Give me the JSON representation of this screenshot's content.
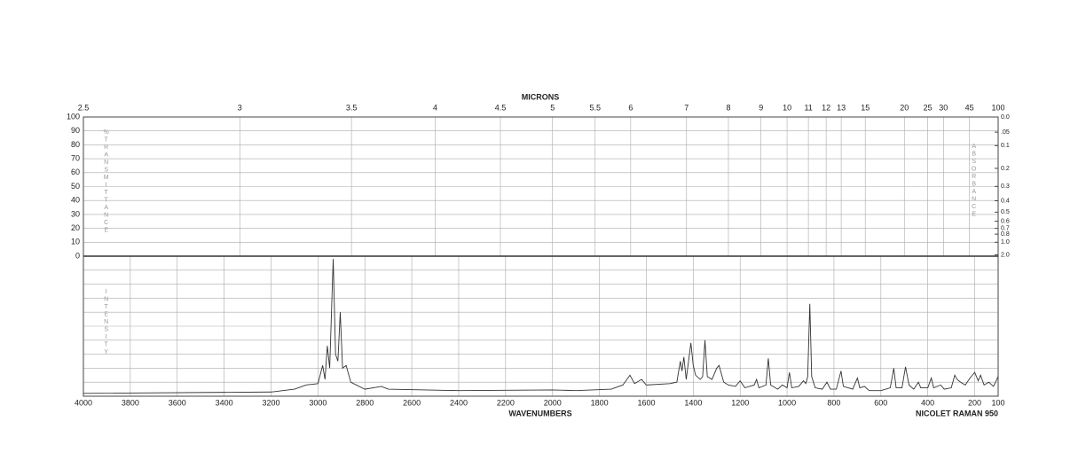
{
  "chart_data": [
    {
      "type": "grid",
      "title": "MICRONS",
      "x2ticks": [
        2.5,
        3,
        3.5,
        4,
        4.5,
        5,
        5.5,
        6,
        7,
        8,
        9,
        10,
        11,
        12,
        13,
        15,
        20,
        25,
        30,
        45,
        100
      ],
      "x2scale": "reciprocal",
      "ylabel": "%TRANSMITTANCE",
      "ylim": [
        0,
        100
      ],
      "yticks": [
        0,
        10,
        20,
        30,
        40,
        50,
        60,
        70,
        80,
        90,
        100
      ],
      "y2label": "ABSORBANCE",
      "y2lim": [
        0,
        2
      ],
      "y2scale": "absorbance",
      "y2ticks": [
        {
          "value": 0,
          "label": "0.0"
        },
        {
          "value": 0.05,
          "label": ".05"
        },
        {
          "value": 0.1,
          "label": "0.1"
        },
        {
          "value": 0.2,
          "label": "0.2"
        },
        {
          "value": 0.3,
          "label": "0.3"
        },
        {
          "value": 0.4,
          "label": "0.4"
        },
        {
          "value": 0.5,
          "label": "0.5"
        },
        {
          "value": 0.6,
          "label": "0.6"
        },
        {
          "value": 0.7,
          "label": "0.7"
        },
        {
          "value": 0.8,
          "label": "0.8"
        },
        {
          "value": 1,
          "label": "1.0"
        },
        {
          "value": 2,
          "label": "2.0"
        }
      ],
      "grid": true
    },
    {
      "type": "line",
      "ylabel": "INTENSITY",
      "xlabel": "WAVENUMBERS",
      "note": "NICOLET RAMAN 950",
      "xlim": [
        4000,
        100
      ],
      "xticks": [
        4000,
        3800,
        3600,
        3400,
        3200,
        3000,
        2800,
        2600,
        2400,
        2200,
        2000,
        1800,
        1600,
        1400,
        1200,
        1000,
        800,
        600,
        400,
        200,
        100
      ],
      "ylim": [
        0,
        100
      ],
      "color": "#333333",
      "grid": true,
      "x": [
        4000,
        3200,
        3100,
        3050,
        3000,
        2980,
        2970,
        2960,
        2950,
        2935,
        2925,
        2915,
        2905,
        2895,
        2880,
        2860,
        2800,
        2730,
        2700,
        2400,
        2000,
        1900,
        1750,
        1700,
        1670,
        1650,
        1620,
        1600,
        1500,
        1470,
        1455,
        1448,
        1440,
        1430,
        1410,
        1400,
        1390,
        1370,
        1360,
        1350,
        1340,
        1320,
        1300,
        1290,
        1270,
        1250,
        1220,
        1200,
        1180,
        1140,
        1130,
        1120,
        1090,
        1080,
        1070,
        1040,
        1020,
        1000,
        990,
        980,
        950,
        930,
        920,
        912,
        903,
        895,
        880,
        850,
        830,
        815,
        790,
        770,
        760,
        720,
        700,
        690,
        670,
        650,
        600,
        560,
        545,
        535,
        510,
        495,
        480,
        460,
        440,
        430,
        400,
        385,
        375,
        345,
        330,
        300,
        285,
        275,
        260,
        240,
        220,
        200,
        185,
        175,
        160,
        140,
        120,
        100
      ],
      "values": [
        2,
        3,
        5,
        8,
        9,
        22,
        12,
        36,
        20,
        98,
        30,
        25,
        60,
        20,
        22,
        10,
        5,
        7,
        5,
        4,
        4.5,
        4,
        5,
        8,
        15,
        9,
        12,
        8,
        9,
        10,
        25,
        18,
        28,
        12,
        38,
        22,
        15,
        12,
        14,
        40,
        14,
        12,
        20,
        22,
        10,
        8,
        7,
        11,
        6,
        8,
        12,
        6,
        8,
        27,
        8,
        5,
        8,
        6,
        17,
        6,
        7,
        11,
        9,
        14,
        66,
        14,
        6,
        5,
        10,
        5,
        5,
        18,
        7,
        5,
        13,
        6,
        7,
        4,
        4,
        6,
        20,
        6,
        6,
        21,
        8,
        5,
        10,
        6,
        6,
        13,
        6,
        8,
        5,
        6,
        15,
        12,
        10,
        8,
        13,
        17,
        11,
        15,
        8,
        10,
        7,
        14
      ]
    }
  ]
}
